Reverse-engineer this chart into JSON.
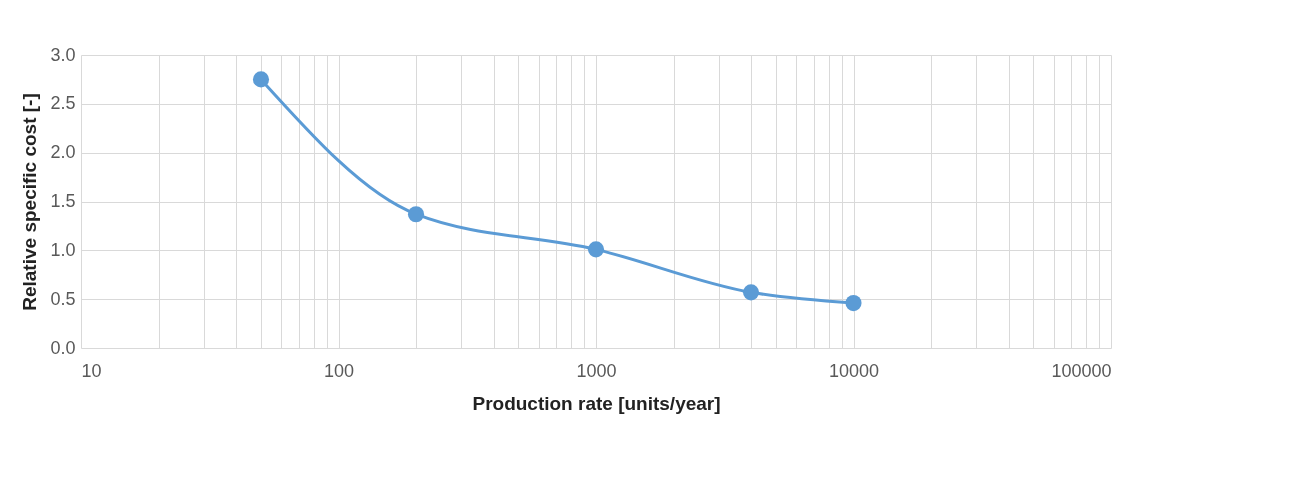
{
  "chart_data": {
    "type": "line",
    "xlabel": "Production  rate [units/year]",
    "ylabel": "Relative specific cost [-]",
    "x": [
      50,
      200,
      1000,
      4000,
      10000
    ],
    "series": [
      {
        "color": "#5b9bd5",
        "values": [
          2.75,
          1.37,
          1.01,
          0.57,
          0.46
        ]
      }
    ],
    "log": "x",
    "grid": true,
    "marker": "circle",
    "line_style": "solid",
    "xlim": [
      10,
      100000
    ],
    "xticks": [
      10,
      {
        "value": 20,
        "label": null
      },
      {
        "value": 30,
        "label": null
      },
      {
        "value": 40,
        "label": null
      },
      {
        "value": 50,
        "label": null
      },
      {
        "value": 60,
        "label": null
      },
      {
        "value": 70,
        "label": null
      },
      {
        "value": 80,
        "label": null
      },
      {
        "value": 90,
        "label": null
      },
      100,
      {
        "value": 200,
        "label": null
      },
      {
        "value": 300,
        "label": null
      },
      {
        "value": 400,
        "label": null
      },
      {
        "value": 500,
        "label": null
      },
      {
        "value": 600,
        "label": null
      },
      {
        "value": 700,
        "label": null
      },
      {
        "value": 800,
        "label": null
      },
      {
        "value": 900,
        "label": null
      },
      1000,
      {
        "value": 2000,
        "label": null
      },
      {
        "value": 3000,
        "label": null
      },
      {
        "value": 4000,
        "label": null
      },
      {
        "value": 5000,
        "label": null
      },
      {
        "value": 6000,
        "label": null
      },
      {
        "value": 7000,
        "label": null
      },
      {
        "value": 8000,
        "label": null
      },
      {
        "value": 9000,
        "label": null
      },
      10000,
      {
        "value": 20000,
        "label": null
      },
      {
        "value": 30000,
        "label": null
      },
      {
        "value": 40000,
        "label": null
      },
      {
        "value": 50000,
        "label": null
      },
      {
        "value": 60000,
        "label": null
      },
      {
        "value": 70000,
        "label": null
      },
      {
        "value": 80000,
        "label": null
      },
      {
        "value": 90000,
        "label": null
      },
      100000
    ],
    "ylim": [
      0,
      3
    ],
    "yticks": [
      {
        "value": 0,
        "label": "0.0"
      },
      0.5,
      {
        "value": 1,
        "label": "1.0"
      },
      1.5,
      {
        "value": 2,
        "label": "2.0"
      },
      2.5,
      {
        "value": 3,
        "label": "3.0"
      }
    ]
  }
}
